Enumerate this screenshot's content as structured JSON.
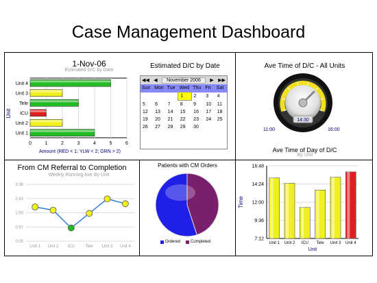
{
  "page_title": "Case Management Dashboard",
  "colors": {
    "green": "#22bb22",
    "yellow": "#f0f020",
    "red": "#e02020",
    "blue": "#2a7fd8",
    "purple": "#7a1f6e",
    "ordered": "#1f1fe8"
  },
  "panel_dc_date": {
    "title": "1-Nov-06",
    "subtitle": "Estimated D/C by Date",
    "ylabel": "Unit",
    "xlabel": "Amount (RED < 1; YLW < 2; GRN > 2)"
  },
  "calendar": {
    "title": "Estimated D/C by Date",
    "month_label": "November 2006",
    "nav_first": "◀◀",
    "nav_prev": "◀",
    "nav_next": "▶",
    "nav_last": "▶▶",
    "weekdays": [
      "Sun",
      "Mon",
      "Tue",
      "Wed",
      "Thu",
      "Fri",
      "Sat"
    ],
    "weeks": [
      [
        "",
        "",
        "",
        "1",
        "2",
        "3",
        "4"
      ],
      [
        "5",
        "6",
        "7",
        "8",
        "9",
        "10",
        "11"
      ],
      [
        "12",
        "13",
        "14",
        "15",
        "16",
        "17",
        "18"
      ],
      [
        "19",
        "20",
        "21",
        "22",
        "23",
        "24",
        "25"
      ],
      [
        "26",
        "27",
        "28",
        "29",
        "30",
        "",
        ""
      ]
    ],
    "selected_day": "1"
  },
  "gauge": {
    "title": "Ave Time of D/C - All Units",
    "value_label": "14:30",
    "min_label": "11:00",
    "max_label": "16:00"
  },
  "panel_cm_referral": {
    "title": "From CM Referral to Completion",
    "subtitle": "Weekly Running Ave By Unit"
  },
  "pie_panel": {
    "title": "Patients with CM Orders",
    "legend": [
      "Ordered",
      "Completed"
    ]
  },
  "panel_time_of_day": {
    "title": "Ave Time of Day of D/C",
    "subtitle": "By Unit",
    "ylabel": "Time",
    "xlabel": "Unit"
  },
  "chart_data": [
    {
      "type": "bar",
      "orientation": "horizontal",
      "title": "1-Nov-06",
      "subtitle": "Estimated D/C by Date",
      "ylabel": "Unit",
      "xlabel": "Amount (RED < 1; YLW < 2; GRN > 2)",
      "categories": [
        "Unit 4",
        "Unit 3",
        "Tele",
        "ICU",
        "Unit 2",
        "Unit 1"
      ],
      "values": [
        5,
        2,
        3,
        1,
        2,
        4
      ],
      "bar_colors": [
        "green",
        "yellow",
        "green",
        "red",
        "yellow",
        "green"
      ],
      "xlim": [
        0,
        6
      ],
      "xticks": [
        "0",
        "1",
        "2",
        "3",
        "4",
        "5",
        "6"
      ],
      "grid": true
    },
    {
      "type": "line",
      "title": "From CM Referral to Completion",
      "subtitle": "Weekly Running Ave By Unit",
      "categories": [
        "Unit 1",
        "Unit 2",
        "ICU",
        "Tele",
        "Unit 3",
        "Unit 4"
      ],
      "values": [
        2.2,
        2.0,
        0.9,
        1.8,
        2.7,
        2.4
      ],
      "point_colors": [
        "yellow",
        "yellow",
        "green",
        "yellow",
        "yellow",
        "yellow"
      ],
      "yticks": [
        "0:05",
        "0:57",
        "1:50",
        "2:43",
        "3:36"
      ],
      "ylim": [
        0.08,
        3.6
      ],
      "grid": true
    },
    {
      "type": "pie",
      "title": "Patients with CM Orders",
      "labels": [
        "Ordered",
        "Completed"
      ],
      "values": [
        55,
        45
      ],
      "colors": [
        "ordered",
        "purple"
      ]
    },
    {
      "type": "bar",
      "title": "Ave Time of Day of D/C",
      "subtitle": "By Unit",
      "xlabel": "Unit",
      "ylabel": "Time",
      "categories": [
        "Unit 1",
        "Unit 2",
        "ICU",
        "Tele",
        "Unit 3",
        "Unit 4"
      ],
      "values": [
        15.2,
        14.5,
        11.3,
        13.6,
        15.3,
        16.0
      ],
      "bar_colors": [
        "yellow",
        "yellow",
        "yellow",
        "yellow",
        "yellow",
        "red"
      ],
      "yticks": [
        "7:12",
        "9:36",
        "12:00",
        "14:24",
        "16:48"
      ],
      "ylim": [
        7.2,
        16.8
      ],
      "grid": true
    }
  ]
}
